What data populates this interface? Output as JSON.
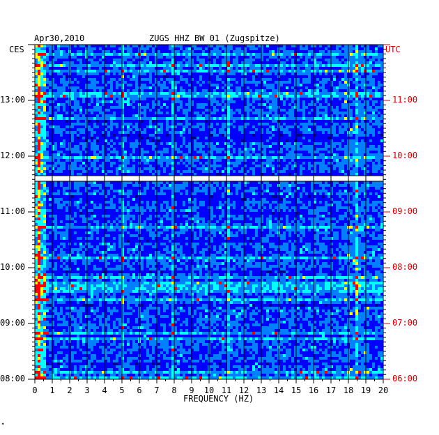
{
  "chart_data": {
    "type": "heatmap",
    "date_label": "Apr30,2010",
    "title": "ZUGS HHZ BW 01 (Zugspitze)",
    "xlabel": "FREQUENCY (HZ)",
    "left_timezone": "CES",
    "right_timezone": "UTC",
    "xlim": [
      0,
      20
    ],
    "x_ticks": [
      "0",
      "1",
      "2",
      "3",
      "4",
      "5",
      "6",
      "7",
      "8",
      "9",
      "10",
      "11",
      "12",
      "13",
      "14",
      "15",
      "16",
      "17",
      "18",
      "19",
      "20"
    ],
    "left_ticks": [
      {
        "label": "13:00",
        "time_ces": 13
      },
      {
        "label": "12:00",
        "time_ces": 12
      },
      {
        "label": "11:00",
        "time_ces": 11
      },
      {
        "label": "10:00",
        "time_ces": 10
      },
      {
        "label": "09:00",
        "time_ces": 9
      },
      {
        "label": "08:00",
        "time_ces": 8
      }
    ],
    "right_ticks": [
      {
        "label": "11:00",
        "time_ces": 13
      },
      {
        "label": "10:00",
        "time_ces": 12
      },
      {
        "label": "09:00",
        "time_ces": 11
      },
      {
        "label": "08:00",
        "time_ces": 10
      },
      {
        "label": "07:00",
        "time_ces": 9
      },
      {
        "label": "06:00",
        "time_ces": 8
      }
    ],
    "time_range_ces": [
      8.0,
      14.0
    ],
    "data_gap_ces": [
      11.55,
      11.65
    ],
    "persistent_lines_hz": [
      0.2,
      5.0,
      7.95,
      11.15,
      18.5
    ],
    "colormap": [
      "#00008b",
      "#0000ff",
      "#0080ff",
      "#00ffff",
      "#ffff00",
      "#ff0000"
    ]
  },
  "footer_mark": "✶"
}
